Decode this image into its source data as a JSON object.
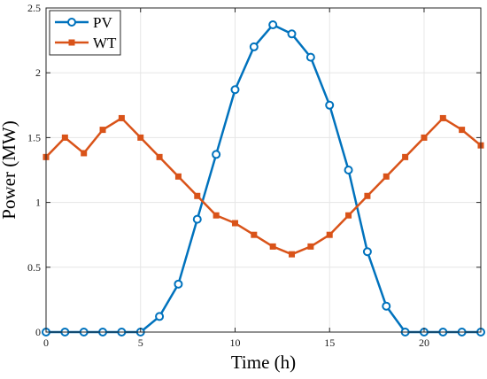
{
  "chart_data": {
    "type": "line",
    "xlabel": "Time (h)",
    "ylabel": "Power (MW)",
    "xlim": [
      0,
      23
    ],
    "ylim": [
      0,
      2.5
    ],
    "x_ticks": [
      0,
      5,
      10,
      15,
      20
    ],
    "y_ticks": [
      0,
      0.5,
      1,
      1.5,
      2,
      2.5
    ],
    "y_tick_labels": [
      "0",
      "0.5",
      "1",
      "1.5",
      "2",
      "2.5"
    ],
    "grid": true,
    "legend_position": "top-left",
    "x": [
      0,
      1,
      2,
      3,
      4,
      5,
      6,
      7,
      8,
      9,
      10,
      11,
      12,
      13,
      14,
      15,
      16,
      17,
      18,
      19,
      20,
      21,
      22,
      23
    ],
    "series": [
      {
        "name": "PV",
        "color": "#0072BD",
        "marker": "circle",
        "values": [
          0,
          0,
          0,
          0,
          0,
          0,
          0.12,
          0.37,
          0.87,
          1.37,
          1.87,
          2.2,
          2.37,
          2.3,
          2.12,
          1.75,
          1.25,
          0.62,
          0.2,
          0,
          0,
          0,
          0,
          0
        ]
      },
      {
        "name": "WT",
        "color": "#D95319",
        "marker": "square",
        "values": [
          1.35,
          1.5,
          1.38,
          1.56,
          1.65,
          1.5,
          1.35,
          1.2,
          1.05,
          0.9,
          0.84,
          0.75,
          0.66,
          0.6,
          0.66,
          0.75,
          0.9,
          1.05,
          1.2,
          1.35,
          1.5,
          1.65,
          1.56,
          1.44
        ]
      }
    ]
  }
}
